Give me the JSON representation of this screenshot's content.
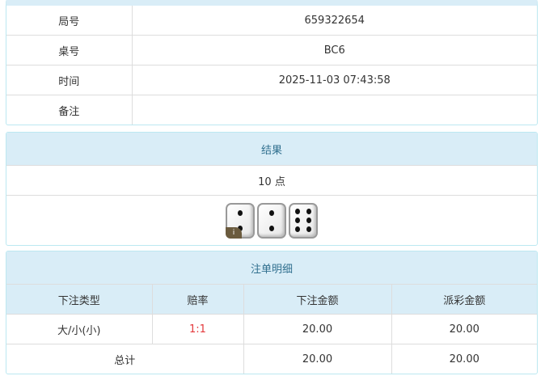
{
  "info": {
    "rows": [
      {
        "label": "局号",
        "value": "659322654"
      },
      {
        "label": "桌号",
        "value": "BC6"
      },
      {
        "label": "时间",
        "value": "2025-11-03 07:43:58"
      },
      {
        "label": "备注",
        "value": ""
      }
    ]
  },
  "result": {
    "title": "结果",
    "points": "10 点",
    "dice": [
      2,
      2,
      6
    ],
    "badge": "i"
  },
  "bets": {
    "title": "注单明细",
    "headers": [
      "下注类型",
      "赔率",
      "下注金额",
      "派彩金额"
    ],
    "rows": [
      {
        "type": "大/小(小)",
        "odds": "1:1",
        "amount": "20.00",
        "payout": "20.00"
      }
    ],
    "total": {
      "label": "总计",
      "amount": "20.00",
      "payout": "20.00"
    }
  },
  "colors": {
    "header_bg": "#d9edf7",
    "header_text": "#31708f",
    "odds": "#e4393c"
  }
}
